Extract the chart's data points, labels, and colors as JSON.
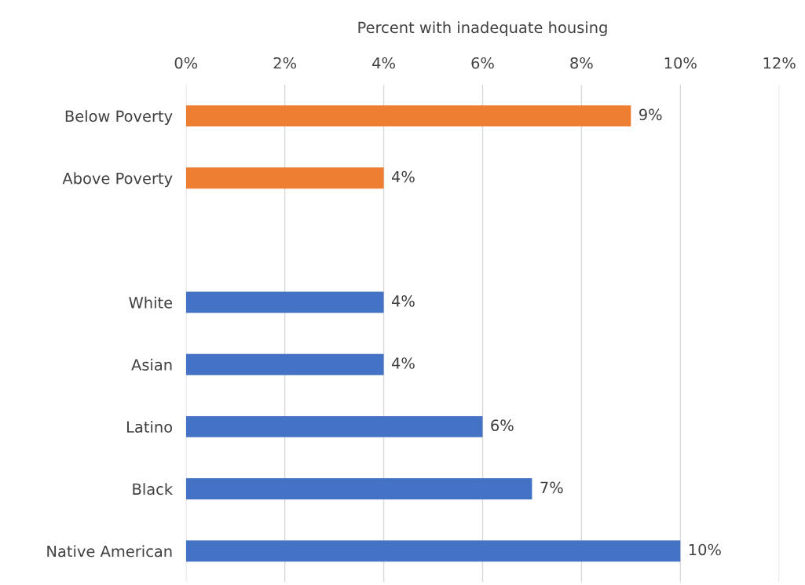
{
  "chart_data": {
    "type": "bar",
    "orientation": "horizontal",
    "xlabel": "Percent with inadequate housing",
    "categories": [
      "Below Poverty",
      "Above Poverty",
      null,
      "White",
      "Asian",
      "Latino",
      "Black",
      "Native American"
    ],
    "values": [
      9,
      4,
      null,
      4,
      4,
      6,
      7,
      10
    ],
    "colors": [
      "#ed7d31",
      "#ed7d31",
      null,
      "#4472c4",
      "#4472c4",
      "#4472c4",
      "#4472c4",
      "#4472c4"
    ],
    "value_labels": [
      "9%",
      "4%",
      null,
      "4%",
      "4%",
      "6%",
      "7%",
      "10%"
    ],
    "xlim": [
      0,
      12
    ],
    "xticks": [
      {
        "value": 0,
        "label": "0%"
      },
      {
        "value": 2,
        "label": "2%"
      },
      {
        "value": 4,
        "label": "4%"
      },
      {
        "value": 6,
        "label": "6%"
      },
      {
        "value": 8,
        "label": "8%"
      },
      {
        "value": 10,
        "label": "10%"
      },
      {
        "value": 12,
        "label": "12%"
      }
    ],
    "grid": "x",
    "legend": false
  }
}
